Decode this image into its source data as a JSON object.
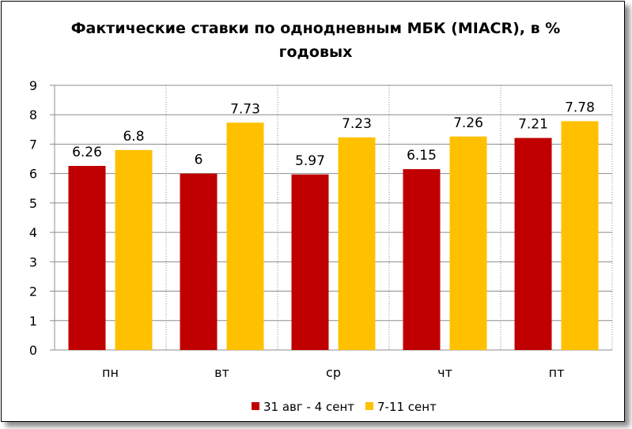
{
  "chart_data": {
    "type": "bar",
    "title_lines": [
      "Фактические ставки по однодневным МБК (MIACR), в %",
      "годовых"
    ],
    "categories": [
      "пн",
      "вт",
      "ср",
      "чт",
      "пт"
    ],
    "series": [
      {
        "name": "31 авг - 4 сент",
        "values": [
          6.26,
          6,
          5.97,
          6.15,
          7.21
        ],
        "labels": [
          "6.26",
          "6",
          "5.97",
          "6.15",
          "7.21"
        ],
        "color": "#C00000"
      },
      {
        "name": "7-11 сент",
        "values": [
          6.8,
          7.73,
          7.23,
          7.26,
          7.78
        ],
        "labels": [
          "6.8",
          "7.73",
          "7.23",
          "7.26",
          "7.78"
        ],
        "color": "#FFC000"
      }
    ],
    "ylim": [
      0,
      9
    ],
    "yticks": [
      "0",
      "1",
      "2",
      "3",
      "4",
      "5",
      "6",
      "7",
      "8",
      "9"
    ],
    "grid": true,
    "legend": "bottom"
  }
}
